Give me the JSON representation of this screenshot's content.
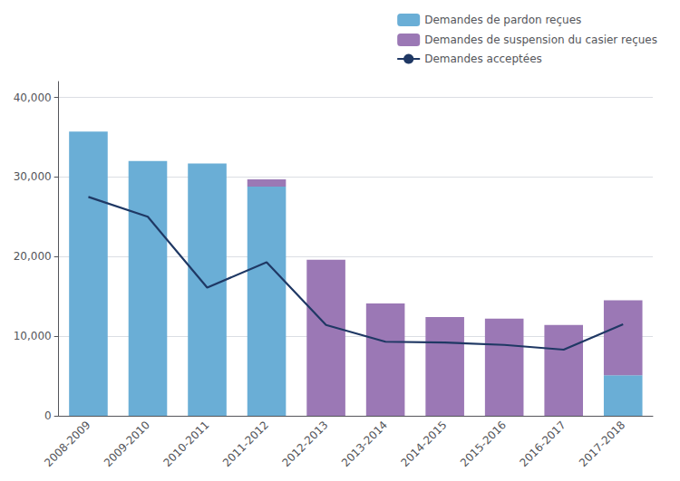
{
  "chart_data": {
    "type": "bar",
    "stacked": true,
    "categories": [
      "2008-2009",
      "2009-2010",
      "2010-2011",
      "2011-2012",
      "2012-2013",
      "2013-2014",
      "2014-2015",
      "2015-2016",
      "2016-2017",
      "2017-2018"
    ],
    "series": [
      {
        "name": "Demandes de pardon reçues",
        "type": "bar",
        "color": "#6aaed6",
        "values": [
          35700,
          32000,
          31700,
          28800,
          0,
          0,
          0,
          0,
          0,
          5100
        ]
      },
      {
        "name": "Demandes de suspension du casier reçues",
        "type": "bar",
        "color": "#9b78b5",
        "values": [
          0,
          0,
          0,
          900,
          19600,
          14100,
          12400,
          12200,
          11400,
          9400
        ]
      },
      {
        "name": "Demandes acceptées",
        "type": "line",
        "color": "#1f3864",
        "values": [
          27500,
          25000,
          16100,
          19300,
          11400,
          9300,
          9200,
          8900,
          8300,
          11500
        ]
      }
    ],
    "ylim": [
      0,
      42000
    ],
    "yticks": [
      0,
      {
        "value": 10000,
        "label": "10,000"
      },
      {
        "value": 20000,
        "label": "20,000"
      },
      {
        "value": 30000,
        "label": "30,000"
      },
      {
        "value": 40000,
        "label": "40,000"
      }
    ],
    "grid": true,
    "legend": "upper right"
  }
}
